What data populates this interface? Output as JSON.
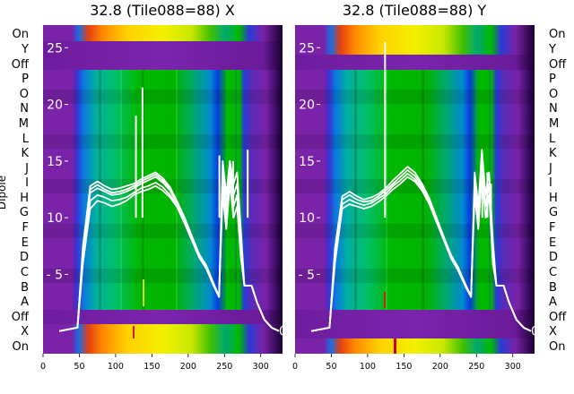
{
  "chart_data": [
    {
      "type": "heatmap",
      "title": "32.8 (Tile088=88) X",
      "xlim": [
        0,
        330
      ],
      "x_ticks": [
        0,
        50,
        100,
        150,
        200,
        250,
        300
      ],
      "ylabel": "Dipole",
      "y_categories": [
        "On",
        "Y",
        "Off",
        "P",
        "O",
        "N",
        "M",
        "L",
        "K",
        "J",
        "I",
        "H",
        "G",
        "F",
        "E",
        "D",
        "C",
        "B",
        "A",
        "Off",
        "X",
        "On"
      ],
      "overlay": {
        "type": "line",
        "ylim": [
          -2,
          27
        ],
        "y_ticks": [
          5,
          10,
          15,
          20,
          25
        ],
        "channel_edges": [
          0,
          45,
          50,
          60,
          70,
          80,
          90,
          100,
          110,
          120,
          130,
          140,
          150,
          160,
          170,
          180,
          190,
          200,
          210,
          220,
          230,
          240,
          245,
          250,
          255,
          260,
          265,
          270,
          275,
          280,
          285,
          290,
          300,
          310,
          320,
          330
        ],
        "series": [
          {
            "values": [
              0,
              0.3,
              6,
              10.8,
              11.5,
              11.3,
              11.0,
              11.2,
              11.5,
              12.0,
              12.3,
              12.5,
              12.8,
              12.4,
              11.8,
              10.9,
              9.5,
              8.0,
              6.5,
              5.5,
              4.0,
              3.0,
              13,
              10,
              14,
              11,
              12,
              7,
              4,
              4,
              4,
              2.5,
              1.0,
              0.3,
              0
            ]
          },
          {
            "values": [
              0,
              0.3,
              6.5,
              11.5,
              12.0,
              11.8,
              11.5,
              11.6,
              11.8,
              12.2,
              12.6,
              12.8,
              13.1,
              12.7,
              12.0,
              11.0,
              9.6,
              8.1,
              6.6,
              5.6,
              4.1,
              3.0,
              12,
              9,
              13,
              10,
              11,
              6.5,
              4,
              4,
              4,
              2.5,
              1.0,
              0.3,
              0
            ]
          },
          {
            "values": [
              0,
              0.3,
              7,
              12.2,
              12.6,
              12.3,
              12.0,
              12.1,
              12.3,
              12.6,
              13.0,
              13.3,
              13.6,
              13.1,
              12.4,
              11.2,
              9.8,
              8.2,
              6.7,
              5.7,
              4.1,
              3.0,
              14,
              11,
              15,
              12,
              13,
              8,
              4,
              4,
              4,
              2.5,
              1.0,
              0.3,
              0
            ]
          },
          {
            "values": [
              0,
              0.3,
              7.5,
              12.8,
              13.2,
              12.8,
              12.5,
              12.6,
              12.8,
              13.0,
              13.4,
              13.7,
              14.0,
              13.5,
              12.7,
              11.4,
              10.0,
              8.4,
              6.8,
              5.8,
              4.2,
              3.1,
              13,
              10,
              14,
              11,
              12,
              7,
              4,
              4,
              4,
              2.5,
              1.0,
              0.3,
              0
            ]
          },
          {
            "values": [
              0,
              0.3,
              7.2,
              12.5,
              12.9,
              12.5,
              12.2,
              12.3,
              12.5,
              12.8,
              13.2,
              13.5,
              13.8,
              13.3,
              12.5,
              11.3,
              9.9,
              8.3,
              6.7,
              5.7,
              4.1,
              3.0,
              15,
              12,
              15,
              13,
              14,
              9,
              4,
              4,
              4,
              2.5,
              1.0,
              0.3,
              0
            ]
          }
        ],
        "spikes": [
          {
            "x": 128,
            "y": 19.0
          },
          {
            "x": 137,
            "y": 21.5
          },
          {
            "x": 243,
            "y": 15.5
          },
          {
            "x": 262,
            "y": 15.0
          },
          {
            "x": 282,
            "y": 16.0
          }
        ]
      }
    },
    {
      "type": "heatmap",
      "title": "32.8 (Tile088=88) Y",
      "xlim": [
        0,
        330
      ],
      "x_ticks": [
        0,
        50,
        100,
        150,
        200,
        250,
        300
      ],
      "y_categories": [
        "On",
        "Y",
        "Off",
        "P",
        "O",
        "N",
        "M",
        "L",
        "K",
        "J",
        "I",
        "H",
        "G",
        "F",
        "E",
        "D",
        "C",
        "B",
        "A",
        "Off",
        "X",
        "On"
      ],
      "overlay": {
        "type": "line",
        "ylim": [
          -2,
          27
        ],
        "y_ticks": [
          5,
          10,
          15,
          20,
          25
        ],
        "channel_edges": [
          0,
          45,
          50,
          60,
          70,
          80,
          90,
          100,
          110,
          120,
          130,
          140,
          150,
          160,
          170,
          180,
          190,
          200,
          210,
          220,
          230,
          240,
          245,
          250,
          255,
          260,
          265,
          270,
          275,
          280,
          285,
          290,
          300,
          310,
          320,
          330
        ],
        "series": [
          {
            "values": [
              0,
              0.3,
              6,
              10.8,
              11.2,
              11.0,
              10.8,
              11.0,
              11.4,
              11.9,
              12.5,
              13.0,
              13.6,
              13.2,
              12.4,
              11.2,
              9.6,
              8.0,
              6.4,
              5.3,
              3.9,
              3.0,
              12,
              9,
              14,
              10,
              12,
              6,
              4,
              4,
              4,
              2.5,
              1.0,
              0.3,
              0
            ]
          },
          {
            "values": [
              0,
              0.3,
              6.5,
              11.2,
              11.6,
              11.3,
              11.1,
              11.3,
              11.7,
              12.1,
              12.8,
              13.3,
              13.9,
              13.4,
              12.6,
              11.3,
              9.7,
              8.1,
              6.5,
              5.4,
              4.0,
              3.0,
              13,
              10,
              15,
              11,
              13,
              7,
              4,
              4,
              4,
              2.5,
              1.0,
              0.3,
              0
            ]
          },
          {
            "values": [
              0,
              0.3,
              7,
              11.6,
              12.0,
              11.6,
              11.4,
              11.5,
              11.9,
              12.4,
              13.0,
              13.6,
              14.2,
              13.7,
              12.8,
              11.5,
              9.8,
              8.2,
              6.6,
              5.5,
              4.0,
              3.1,
              14,
              11,
              16,
              12,
              14,
              8,
              4,
              4,
              4,
              2.5,
              1.0,
              0.3,
              0
            ]
          },
          {
            "values": [
              0,
              0.3,
              7.3,
              11.9,
              12.3,
              11.9,
              11.6,
              11.8,
              12.1,
              12.6,
              13.3,
              13.9,
              14.5,
              14.0,
              13.0,
              11.7,
              10.0,
              8.3,
              6.7,
              5.6,
              4.1,
              3.1,
              13,
              10,
              15,
              11,
              13,
              7,
              4,
              4,
              4,
              2.5,
              1.0,
              0.3,
              0
            ]
          }
        ],
        "spikes": [
          {
            "x": 124,
            "y": 25.5
          },
          {
            "x": 258,
            "y": 14.5
          },
          {
            "x": 265,
            "y": 14.0
          },
          {
            "x": 270,
            "y": 13.0
          }
        ]
      }
    }
  ]
}
